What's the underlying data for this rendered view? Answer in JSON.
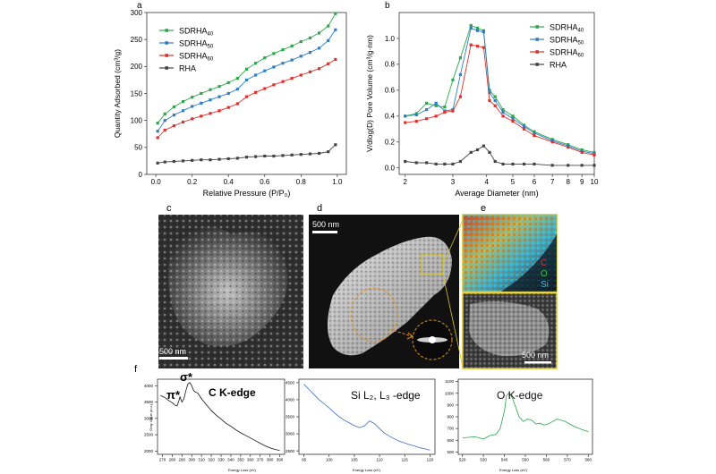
{
  "panels": {
    "a": "a",
    "b": "b",
    "c": "c",
    "d": "d",
    "e": "e",
    "f": "f"
  },
  "scale_bars": {
    "c": "500 nm",
    "d": "500 nm",
    "e": "500 nm"
  },
  "eds_labels": {
    "c": "C",
    "o": "O",
    "si": "Si"
  },
  "eels": {
    "c_title": "C K-edge",
    "si_title": "Si L₂, L₃ -edge",
    "o_title": "O K-edge",
    "pi_label": "π*",
    "sigma_label": "σ*",
    "ylabel": "Gray Value (a.u.)",
    "xlabel": "Energy Loss (eV)"
  },
  "colors": {
    "SDRHA40": "#2aa84a",
    "SDRHA50": "#2f7fc8",
    "SDRHA60": "#e0302b",
    "RHA": "#444444",
    "c_edge": "#111111",
    "si_edge": "#3a6fc0",
    "o_edge": "#2aa84a",
    "frame_yellow": "#d8c21b",
    "dashed_orange": "#e09020"
  },
  "chart_data": [
    {
      "type": "line",
      "panel": "a",
      "xlabel": "Relative Pressure (P/P₀)",
      "ylabel": "Quantity Adsorbed (cm³/g)",
      "xlim": [
        -0.05,
        1.05
      ],
      "ylim": [
        0,
        300
      ],
      "xticks": [
        "0.0",
        "0.2",
        "0.4",
        "0.6",
        "0.8",
        "1.0"
      ],
      "yticks": [
        "0",
        "50",
        "100",
        "150",
        "200",
        "250",
        "300"
      ],
      "legend": "top-left",
      "series": [
        {
          "name": "SDRHA40",
          "label_main": "SDRHA",
          "label_sub": "40",
          "color": "#2aa84a",
          "x": [
            0.01,
            0.05,
            0.1,
            0.15,
            0.2,
            0.25,
            0.3,
            0.35,
            0.4,
            0.45,
            0.5,
            0.55,
            0.6,
            0.65,
            0.7,
            0.75,
            0.8,
            0.85,
            0.9,
            0.95,
            0.99
          ],
          "y": [
            95,
            112,
            125,
            135,
            143,
            150,
            157,
            163,
            170,
            178,
            195,
            206,
            216,
            224,
            231,
            238,
            246,
            253,
            262,
            275,
            298
          ]
        },
        {
          "name": "SDRHA50",
          "label_main": "SDRHA",
          "label_sub": "50",
          "color": "#2f7fc8",
          "x": [
            0.01,
            0.05,
            0.1,
            0.15,
            0.2,
            0.25,
            0.3,
            0.35,
            0.4,
            0.45,
            0.5,
            0.55,
            0.6,
            0.65,
            0.7,
            0.75,
            0.8,
            0.85,
            0.9,
            0.95,
            0.99
          ],
          "y": [
            80,
            100,
            110,
            118,
            126,
            132,
            138,
            144,
            150,
            158,
            175,
            184,
            192,
            199,
            206,
            212,
            219,
            226,
            234,
            248,
            268
          ]
        },
        {
          "name": "SDRHA60",
          "label_main": "SDRHA",
          "label_sub": "60",
          "color": "#e0302b",
          "x": [
            0.01,
            0.05,
            0.1,
            0.15,
            0.2,
            0.25,
            0.3,
            0.35,
            0.4,
            0.45,
            0.5,
            0.55,
            0.6,
            0.65,
            0.7,
            0.75,
            0.8,
            0.85,
            0.9,
            0.95,
            0.99
          ],
          "y": [
            68,
            82,
            90,
            97,
            103,
            108,
            113,
            118,
            124,
            131,
            144,
            152,
            159,
            166,
            172,
            178,
            184,
            190,
            196,
            205,
            213
          ]
        },
        {
          "name": "RHA",
          "label_main": "RHA",
          "label_sub": "",
          "color": "#444444",
          "x": [
            0.01,
            0.05,
            0.1,
            0.15,
            0.2,
            0.25,
            0.3,
            0.35,
            0.4,
            0.45,
            0.5,
            0.55,
            0.6,
            0.65,
            0.7,
            0.75,
            0.8,
            0.85,
            0.9,
            0.95,
            0.99
          ],
          "y": [
            21,
            23,
            24,
            25,
            26,
            27,
            27,
            28,
            29,
            30,
            32,
            33,
            34,
            34,
            35,
            36,
            37,
            38,
            39,
            42,
            55
          ]
        }
      ]
    },
    {
      "type": "line",
      "panel": "b",
      "xlabel": "Average Diameter (nm)",
      "ylabel": "V/dlog(D) Pore Volume (cm³/g·nm)",
      "xscale": "log",
      "xlim": [
        1.9,
        10
      ],
      "ylim": [
        -0.05,
        1.2
      ],
      "xticks": [
        "2",
        "3",
        "4",
        "5",
        "6",
        "7",
        "8",
        "9",
        "10"
      ],
      "yticks": [
        "0.0",
        "0.2",
        "0.4",
        "0.6",
        "0.8",
        "1.0"
      ],
      "legend": "top-right",
      "series": [
        {
          "name": "SDRHA40",
          "label_main": "SDRHA",
          "label_sub": "40",
          "color": "#2aa84a",
          "x": [
            2.0,
            2.2,
            2.4,
            2.6,
            2.8,
            3.0,
            3.2,
            3.5,
            3.7,
            3.9,
            4.1,
            4.3,
            4.6,
            5.0,
            5.5,
            6.0,
            7.0,
            8.0,
            9.0,
            10.0
          ],
          "y": [
            0.4,
            0.42,
            0.5,
            0.48,
            0.47,
            0.68,
            0.85,
            1.1,
            1.08,
            1.06,
            0.6,
            0.55,
            0.45,
            0.4,
            0.33,
            0.28,
            0.22,
            0.18,
            0.14,
            0.12
          ]
        },
        {
          "name": "SDRHA50",
          "label_main": "SDRHA",
          "label_sub": "50",
          "color": "#2f7fc8",
          "x": [
            2.0,
            2.2,
            2.4,
            2.6,
            2.8,
            3.0,
            3.2,
            3.5,
            3.7,
            3.9,
            4.1,
            4.3,
            4.6,
            5.0,
            5.5,
            6.0,
            7.0,
            8.0,
            9.0,
            10.0
          ],
          "y": [
            0.4,
            0.41,
            0.45,
            0.5,
            0.44,
            0.45,
            0.72,
            1.08,
            1.06,
            1.05,
            0.58,
            0.52,
            0.43,
            0.38,
            0.32,
            0.27,
            0.21,
            0.17,
            0.13,
            0.11
          ]
        },
        {
          "name": "SDRHA60",
          "label_main": "SDRHA",
          "label_sub": "60",
          "color": "#e0302b",
          "x": [
            2.0,
            2.2,
            2.4,
            2.6,
            2.8,
            3.0,
            3.2,
            3.5,
            3.7,
            3.9,
            4.1,
            4.3,
            4.6,
            5.0,
            5.5,
            6.0,
            7.0,
            8.0,
            9.0,
            10.0
          ],
          "y": [
            0.35,
            0.36,
            0.38,
            0.4,
            0.43,
            0.44,
            0.55,
            0.95,
            0.94,
            0.93,
            0.52,
            0.48,
            0.4,
            0.36,
            0.3,
            0.25,
            0.2,
            0.16,
            0.12,
            0.1
          ]
        },
        {
          "name": "RHA",
          "label_main": "RHA",
          "label_sub": "",
          "color": "#444444",
          "x": [
            2.0,
            2.2,
            2.4,
            2.6,
            2.8,
            3.0,
            3.2,
            3.5,
            3.7,
            3.9,
            4.1,
            4.3,
            4.6,
            5.0,
            5.5,
            6.0,
            7.0,
            8.0,
            9.0,
            10.0
          ],
          "y": [
            0.05,
            0.04,
            0.04,
            0.03,
            0.03,
            0.03,
            0.05,
            0.12,
            0.14,
            0.17,
            0.12,
            0.05,
            0.03,
            0.03,
            0.03,
            0.03,
            0.02,
            0.02,
            0.02,
            0.02
          ]
        }
      ]
    },
    {
      "type": "line",
      "panel": "f-C",
      "xlim": [
        265,
        395
      ],
      "ylim": [
        1900,
        4200
      ],
      "xticks": [
        "270",
        "280",
        "290",
        "300",
        "310",
        "320",
        "330",
        "340",
        "350",
        "360",
        "370",
        "380",
        "390"
      ],
      "yticks": [
        "2000",
        "2500",
        "3000",
        "3500",
        "4000"
      ],
      "x": [
        268,
        272,
        276,
        280,
        283,
        285,
        287,
        288,
        290,
        292,
        294,
        296,
        298,
        300,
        302,
        304,
        306,
        310,
        315,
        320,
        325,
        330,
        335,
        340,
        345,
        350,
        355,
        360,
        365,
        370,
        375,
        380,
        385,
        390
      ],
      "y": [
        3700,
        3650,
        3560,
        3480,
        3400,
        3380,
        3550,
        3660,
        3500,
        3600,
        3850,
        4050,
        4100,
        4000,
        3850,
        3800,
        3780,
        3600,
        3420,
        3240,
        3100,
        2980,
        2850,
        2760,
        2650,
        2560,
        2480,
        2400,
        2320,
        2240,
        2160,
        2100,
        2050,
        2020
      ]
    },
    {
      "type": "line",
      "panel": "f-Si",
      "xlim": [
        94,
        121
      ],
      "ylim": [
        2400,
        4600
      ],
      "xticks": [
        "95",
        "100",
        "105",
        "110",
        "115",
        "120"
      ],
      "yticks": [
        "2500",
        "3000",
        "3500",
        "4000",
        "4500"
      ],
      "x": [
        95,
        96,
        97,
        98,
        99,
        100,
        101,
        102,
        103,
        104,
        105,
        106,
        107,
        108,
        109,
        110,
        111,
        112,
        113,
        114,
        115,
        116,
        117,
        118,
        119,
        120
      ],
      "y": [
        4450,
        4300,
        4150,
        4000,
        3880,
        3760,
        3620,
        3500,
        3400,
        3320,
        3240,
        3180,
        3230,
        3380,
        3300,
        3150,
        3020,
        2930,
        2850,
        2780,
        2730,
        2680,
        2640,
        2590,
        2560,
        2520
      ]
    },
    {
      "type": "line",
      "panel": "f-O",
      "xlim": [
        518,
        582
      ],
      "ylim": [
        480,
        1120
      ],
      "xticks": [
        "520",
        "530",
        "540",
        "550",
        "560",
        "570",
        "580"
      ],
      "yticks": [
        "500",
        "600",
        "700",
        "800",
        "900",
        "1000",
        "1100"
      ],
      "x": [
        520,
        523,
        526,
        530,
        533,
        536,
        538,
        540,
        541,
        542,
        543,
        544,
        545,
        547,
        549,
        551,
        553,
        555,
        557,
        559,
        561,
        563,
        565,
        567,
        569,
        571,
        573,
        575,
        577,
        579,
        580
      ],
      "y": [
        620,
        625,
        630,
        610,
        640,
        650,
        700,
        850,
        980,
        1000,
        990,
        950,
        900,
        800,
        760,
        780,
        770,
        740,
        745,
        730,
        740,
        760,
        780,
        770,
        760,
        740,
        720,
        705,
        690,
        680,
        670
      ]
    }
  ]
}
